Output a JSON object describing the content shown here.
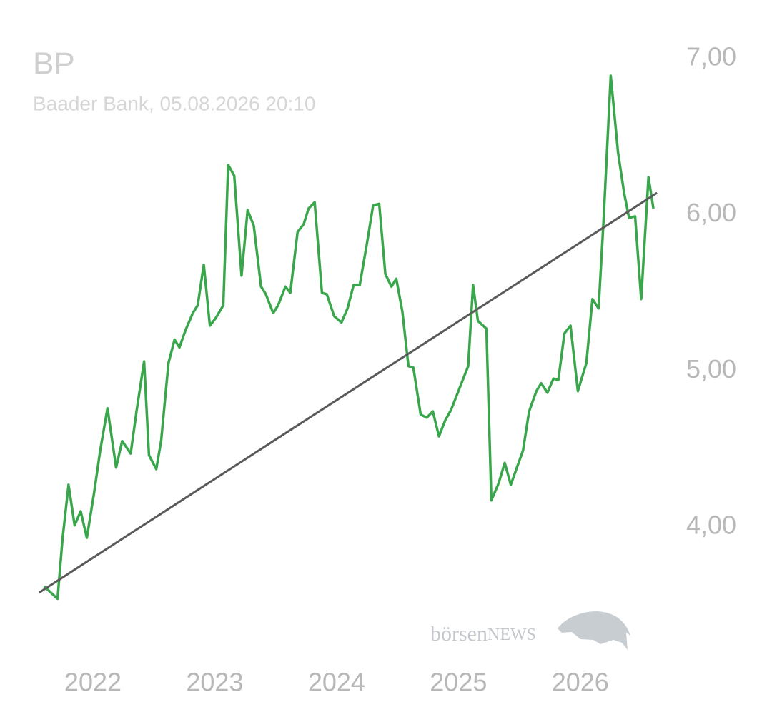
{
  "chart_data": {
    "type": "line",
    "title": "BP",
    "subtitle": "Baader Bank, 05.08.2026 20:10",
    "watermark": {
      "part1": "börsen",
      "part2": "NEWS"
    },
    "xlim": [
      2021.5,
      2026.7
    ],
    "xticks": [
      2022,
      2023,
      2024,
      2025,
      2026
    ],
    "ylim": [
      3.35,
      7.375
    ],
    "yticks": [
      {
        "value": 4,
        "label": "4,00"
      },
      {
        "value": 5,
        "label": "5,00"
      },
      {
        "value": 6,
        "label": "6,00"
      },
      {
        "value": 7,
        "label": "7,00"
      }
    ],
    "series": [
      {
        "color": "#3aa64c",
        "x": [
          2021.6,
          2021.71,
          2021.75,
          2021.8,
          2021.85,
          2021.9,
          2021.95,
          2022.01,
          2022.06,
          2022.12,
          2022.19,
          2022.24,
          2022.31,
          2022.36,
          2022.42,
          2022.46,
          2022.52,
          2022.56,
          2022.62,
          2022.67,
          2022.71,
          2022.76,
          2022.82,
          2022.86,
          2022.91,
          2022.96,
          2023.01,
          2023.07,
          2023.11,
          2023.16,
          2023.22,
          2023.27,
          2023.32,
          2023.38,
          2023.42,
          2023.48,
          2023.52,
          2023.58,
          2023.62,
          2023.68,
          2023.73,
          2023.77,
          2023.82,
          2023.88,
          2023.92,
          2023.98,
          2024.04,
          2024.09,
          2024.14,
          2024.19,
          2024.25,
          2024.3,
          2024.35,
          2024.4,
          2024.45,
          2024.49,
          2024.54,
          2024.59,
          2024.63,
          2024.69,
          2024.74,
          2024.79,
          2024.84,
          2024.89,
          2024.94,
          2025.0,
          2025.04,
          2025.08,
          2025.12,
          2025.16,
          2025.23,
          2025.27,
          2025.33,
          2025.38,
          2025.43,
          2025.48,
          2025.53,
          2025.58,
          2025.64,
          2025.68,
          2025.73,
          2025.78,
          2025.82,
          2025.87,
          2025.92,
          2025.98,
          2026.05,
          2026.1,
          2026.15,
          2026.19,
          2026.25,
          2026.31,
          2026.36,
          2026.4,
          2026.45,
          2026.5,
          2026.56,
          2026.6
        ],
        "values": [
          3.62,
          3.54,
          3.92,
          4.27,
          4.01,
          4.1,
          3.93,
          4.22,
          4.49,
          4.76,
          4.38,
          4.55,
          4.47,
          4.75,
          5.06,
          4.46,
          4.37,
          4.55,
          5.05,
          5.2,
          5.15,
          5.26,
          5.37,
          5.42,
          5.68,
          5.29,
          5.34,
          5.42,
          6.32,
          6.25,
          5.61,
          6.03,
          5.93,
          5.54,
          5.49,
          5.37,
          5.42,
          5.54,
          5.5,
          5.89,
          5.94,
          6.04,
          6.08,
          5.5,
          5.49,
          5.35,
          5.31,
          5.4,
          5.55,
          5.55,
          5.82,
          6.06,
          6.07,
          5.62,
          5.54,
          5.59,
          5.38,
          5.03,
          5.02,
          4.72,
          4.7,
          4.74,
          4.58,
          4.68,
          4.75,
          4.87,
          4.95,
          5.03,
          5.55,
          5.32,
          5.27,
          4.17,
          4.28,
          4.41,
          4.27,
          4.38,
          4.49,
          4.74,
          4.87,
          4.92,
          4.86,
          4.95,
          4.94,
          5.24,
          5.29,
          4.87,
          5.05,
          5.46,
          5.4,
          5.95,
          6.89,
          6.4,
          6.14,
          5.98,
          5.99,
          5.46,
          6.24,
          6.04
        ]
      }
    ],
    "trend": {
      "color": "#5a5a5a",
      "x": [
        2021.56,
        2026.63
      ],
      "values": [
        3.58,
        6.14
      ]
    }
  }
}
